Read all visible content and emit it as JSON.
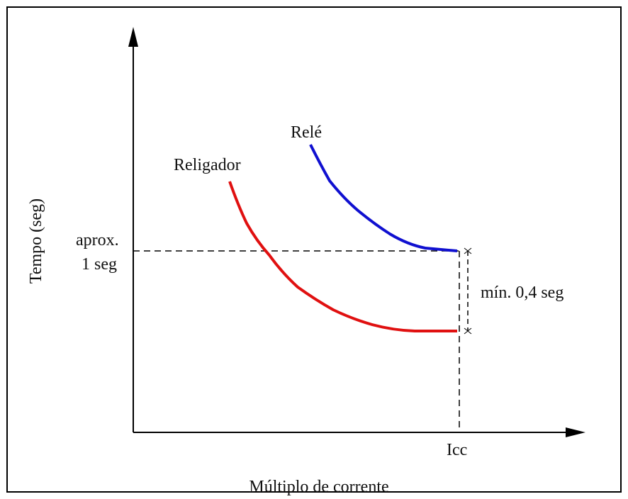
{
  "axes": {
    "y_label": "Tempo (seg)",
    "x_label": "Múltiplo de corrente"
  },
  "curves": [
    {
      "label": "Relé",
      "color": "#1010d0"
    },
    {
      "label": "Religador",
      "color": "#e01010"
    }
  ],
  "annotations": {
    "approx_line1": "aprox.",
    "approx_line2": "1 seg",
    "margin": "mín. 0,4 seg",
    "icc": "Icc"
  }
}
